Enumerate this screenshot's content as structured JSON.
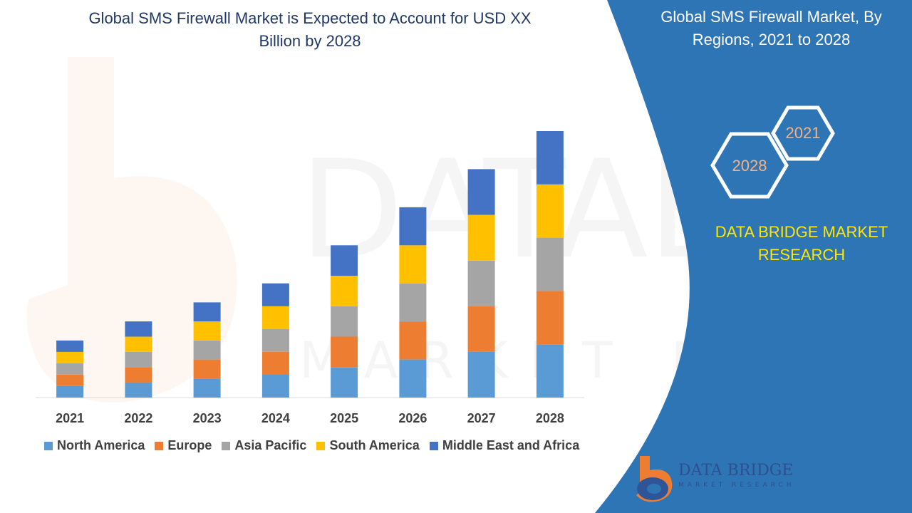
{
  "left_title": "Global SMS Firewall Market is Expected to Account for USD XX Billion by 2028",
  "right_title": "Global SMS Firewall Market, By Regions, 2021 to 2028",
  "hexagons": {
    "small": "2021",
    "large": "2028"
  },
  "brand": "DATA BRIDGE MARKET RESEARCH",
  "logo": {
    "name": "DATA BRIDGE",
    "tagline": "MARKET RESEARCH"
  },
  "colors": {
    "panel_blue": "#2e75b6",
    "title_navy": "#1f3864",
    "brand_yellow": "#ffe600",
    "hex_text": "#f4b183"
  },
  "chart_data": {
    "type": "bar",
    "stacked": true,
    "categories": [
      "2021",
      "2022",
      "2023",
      "2024",
      "2025",
      "2026",
      "2027",
      "2028"
    ],
    "series": [
      {
        "name": "North America",
        "color": "#5b9bd5",
        "values": [
          3,
          4,
          5,
          6,
          8,
          10,
          12,
          14
        ]
      },
      {
        "name": "Europe",
        "color": "#ed7d31",
        "values": [
          3,
          4,
          5,
          6,
          8,
          10,
          12,
          14
        ]
      },
      {
        "name": "Asia Pacific",
        "color": "#a5a5a5",
        "values": [
          3,
          4,
          5,
          6,
          8,
          10,
          12,
          14
        ]
      },
      {
        "name": "South America",
        "color": "#ffc000",
        "values": [
          3,
          4,
          5,
          6,
          8,
          10,
          12,
          14
        ]
      },
      {
        "name": "Middle East and Africa",
        "color": "#4472c4",
        "values": [
          3,
          4,
          5,
          6,
          8,
          10,
          12,
          14
        ]
      }
    ],
    "ylim": [
      0,
      70
    ],
    "grid": false,
    "legend_position": "bottom"
  }
}
